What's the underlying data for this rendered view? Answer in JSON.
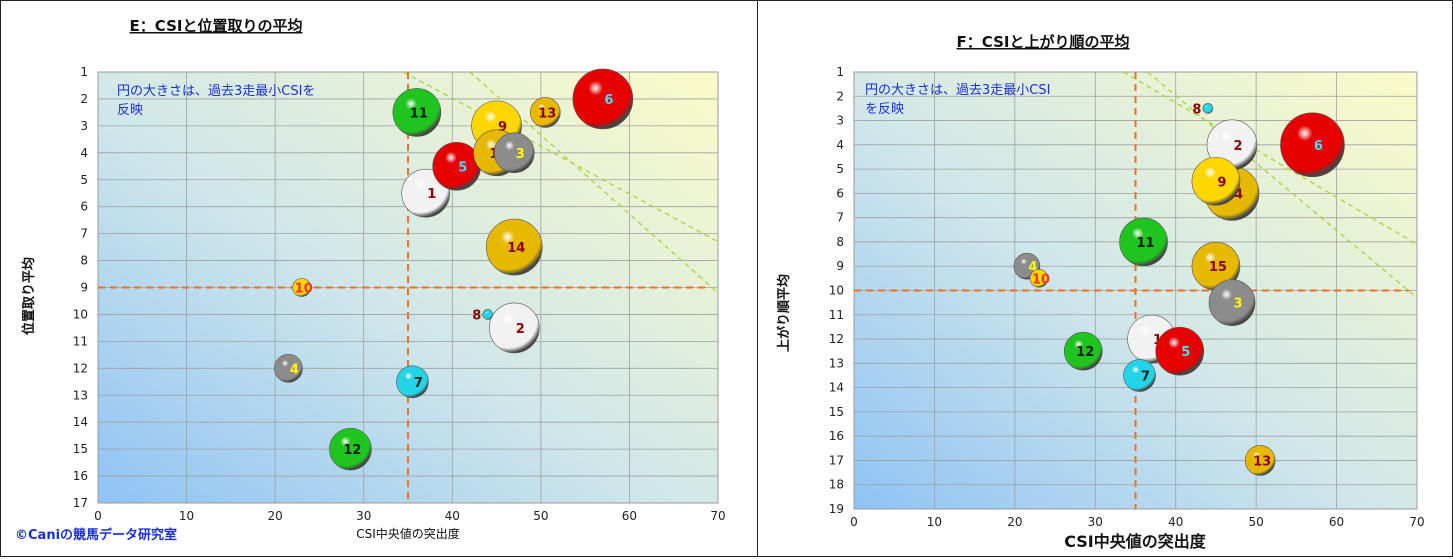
{
  "credit": "©Caniの競馬データ研究室",
  "colors": {
    "red": "#e60000",
    "white": "#f2f2f2",
    "gray": "#8c8c8c",
    "yellow": "#ffd700",
    "gold": "#e6b800",
    "green": "#1fc41f",
    "cyan": "#22d4e6",
    "guide": "#f07020",
    "diag": "#a8d43a"
  },
  "chart_data": [
    {
      "type": "scatter",
      "title": "E：CSIと位置取りの平均",
      "xlabel": "CSI中央値の突出度",
      "ylabel": "位置取り平均",
      "note": "円の大きさは、過去3走最小CSIを反映",
      "xlim": [
        0,
        70
      ],
      "ylim": [
        1,
        17
      ],
      "y_reversed": true,
      "grid": true,
      "xticks": [
        "0",
        "10",
        "20",
        "30",
        "40",
        "50",
        "60",
        "70"
      ],
      "yticks": [
        "1",
        "2",
        "3",
        "4",
        "5",
        "6",
        "7",
        "8",
        "9",
        "10",
        "11",
        "12",
        "13",
        "14",
        "15",
        "16",
        "17"
      ],
      "guides": {
        "x": 35,
        "y": 9
      },
      "points": [
        {
          "label": "1",
          "x": 37,
          "y": 5.5,
          "size": 48,
          "color": "white",
          "label_color": "#8b0000"
        },
        {
          "label": "2",
          "x": 47,
          "y": 10.5,
          "size": 50,
          "color": "white",
          "label_color": "#8b0000"
        },
        {
          "label": "3",
          "x": 47,
          "y": 4,
          "size": 40,
          "color": "gray",
          "label_color": "#ffff00"
        },
        {
          "label": "4",
          "x": 21.5,
          "y": 12,
          "size": 28,
          "color": "gray",
          "label_color": "#ffff00"
        },
        {
          "label": "5",
          "x": 40.5,
          "y": 4.5,
          "size": 48,
          "color": "red",
          "label_color": "#40e0ff"
        },
        {
          "label": "6",
          "x": 57,
          "y": 2,
          "size": 60,
          "color": "red",
          "label_color": "#40e0ff"
        },
        {
          "label": "7",
          "x": 35.5,
          "y": 12.5,
          "size": 32,
          "color": "cyan",
          "label_color": "#202020"
        },
        {
          "label": "8",
          "x": 44,
          "y": 10,
          "size": 10,
          "color": "cyan",
          "label_color": "#8b0000"
        },
        {
          "label": "9",
          "x": 45,
          "y": 3,
          "size": 50,
          "color": "yellow",
          "label_color": "#8b0000"
        },
        {
          "label": "10",
          "x": 23,
          "y": 9,
          "size": 18,
          "color": "yellow",
          "label_color": "#ff3030"
        },
        {
          "label": "11",
          "x": 36,
          "y": 2.5,
          "size": 48,
          "color": "green",
          "label_color": "#1a1a1a"
        },
        {
          "label": "12",
          "x": 28.5,
          "y": 15,
          "size": 42,
          "color": "green",
          "label_color": "#1a1a1a"
        },
        {
          "label": "13",
          "x": 50.5,
          "y": 2.5,
          "size": 30,
          "color": "gold",
          "label_color": "#8b0000"
        },
        {
          "label": "14",
          "x": 47,
          "y": 7.5,
          "size": 56,
          "color": "gold",
          "label_color": "#8b0000"
        },
        {
          "label": "15",
          "x": 45,
          "y": 4,
          "size": 46,
          "color": "gold",
          "label_color": "#8b0000"
        }
      ]
    },
    {
      "type": "scatter",
      "title": "F：CSIと上がり順の平均",
      "xlabel": "CSI中央値の突出度",
      "ylabel": "上がり順平均",
      "note": "円の大きさは、過去3走最小CSIを反映",
      "xlim": [
        0,
        70
      ],
      "ylim": [
        1,
        19
      ],
      "y_reversed": true,
      "grid": true,
      "xticks": [
        "0",
        "10",
        "20",
        "30",
        "40",
        "50",
        "60",
        "70"
      ],
      "yticks": [
        "1",
        "2",
        "3",
        "4",
        "5",
        "6",
        "7",
        "8",
        "9",
        "10",
        "11",
        "12",
        "13",
        "14",
        "15",
        "16",
        "17",
        "18",
        "19"
      ],
      "guides": {
        "x": 35,
        "y": 10
      },
      "points": [
        {
          "label": "1",
          "x": 37,
          "y": 12,
          "size": 48,
          "color": "white",
          "label_color": "#8b0000"
        },
        {
          "label": "2",
          "x": 47,
          "y": 4,
          "size": 50,
          "color": "white",
          "label_color": "#8b0000"
        },
        {
          "label": "3",
          "x": 47,
          "y": 10.5,
          "size": 46,
          "color": "gray",
          "label_color": "#ffff00"
        },
        {
          "label": "4",
          "x": 21.5,
          "y": 9,
          "size": 26,
          "color": "gray",
          "label_color": "#ffff00"
        },
        {
          "label": "5",
          "x": 40.5,
          "y": 12.5,
          "size": 48,
          "color": "red",
          "label_color": "#40e0ff"
        },
        {
          "label": "6",
          "x": 57,
          "y": 4,
          "size": 64,
          "color": "red",
          "label_color": "#40e0ff"
        },
        {
          "label": "7",
          "x": 35.5,
          "y": 13.5,
          "size": 32,
          "color": "cyan",
          "label_color": "#202020"
        },
        {
          "label": "8",
          "x": 44,
          "y": 2.5,
          "size": 10,
          "color": "cyan",
          "label_color": "#8b0000"
        },
        {
          "label": "9",
          "x": 45,
          "y": 5.5,
          "size": 48,
          "color": "yellow",
          "label_color": "#8b0000"
        },
        {
          "label": "10",
          "x": 23,
          "y": 9.5,
          "size": 18,
          "color": "yellow",
          "label_color": "#ff3030"
        },
        {
          "label": "11",
          "x": 36,
          "y": 8,
          "size": 48,
          "color": "green",
          "label_color": "#1a1a1a"
        },
        {
          "label": "12",
          "x": 28.5,
          "y": 12.5,
          "size": 38,
          "color": "green",
          "label_color": "#1a1a1a"
        },
        {
          "label": "13",
          "x": 50.5,
          "y": 17,
          "size": 30,
          "color": "gold",
          "label_color": "#8b0000"
        },
        {
          "label": "14",
          "x": 47,
          "y": 6,
          "size": 54,
          "color": "gold",
          "label_color": "#8b0000"
        },
        {
          "label": "15",
          "x": 45,
          "y": 9,
          "size": 48,
          "color": "gold",
          "label_color": "#8b0000"
        }
      ]
    }
  ]
}
